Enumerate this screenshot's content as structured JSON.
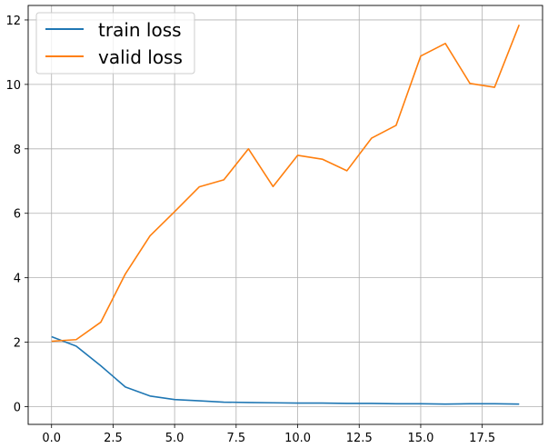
{
  "chart_data": {
    "type": "line",
    "title": "",
    "xlabel": "",
    "ylabel": "",
    "xlim": [
      -0.95,
      19.95
    ],
    "ylim": [
      -0.55,
      12.45
    ],
    "xticks": [
      0.0,
      2.5,
      5.0,
      7.5,
      10.0,
      12.5,
      15.0,
      17.5
    ],
    "xtick_labels": [
      "0.0",
      "2.5",
      "5.0",
      "7.5",
      "10.0",
      "12.5",
      "15.0",
      "17.5"
    ],
    "yticks": [
      0,
      2,
      4,
      6,
      8,
      10,
      12
    ],
    "ytick_labels": [
      "0",
      "2",
      "4",
      "6",
      "8",
      "10",
      "12"
    ],
    "grid": true,
    "legend_position": "top-left",
    "x": [
      0,
      1,
      2,
      3,
      4,
      5,
      6,
      7,
      8,
      9,
      10,
      11,
      12,
      13,
      14,
      15,
      16,
      17,
      18,
      19
    ],
    "series": [
      {
        "name": "train loss",
        "color": "#1f77b4",
        "values": [
          2.17,
          1.88,
          1.27,
          0.61,
          0.33,
          0.22,
          0.18,
          0.14,
          0.13,
          0.12,
          0.11,
          0.11,
          0.1,
          0.1,
          0.09,
          0.09,
          0.08,
          0.09,
          0.09,
          0.08
        ]
      },
      {
        "name": "valid loss",
        "color": "#ff7f0e",
        "values": [
          2.03,
          2.08,
          2.62,
          4.12,
          5.3,
          6.05,
          6.82,
          7.04,
          8.0,
          6.83,
          7.8,
          7.68,
          7.32,
          8.33,
          8.73,
          10.88,
          11.27,
          10.03,
          9.91,
          11.85
        ]
      }
    ]
  }
}
